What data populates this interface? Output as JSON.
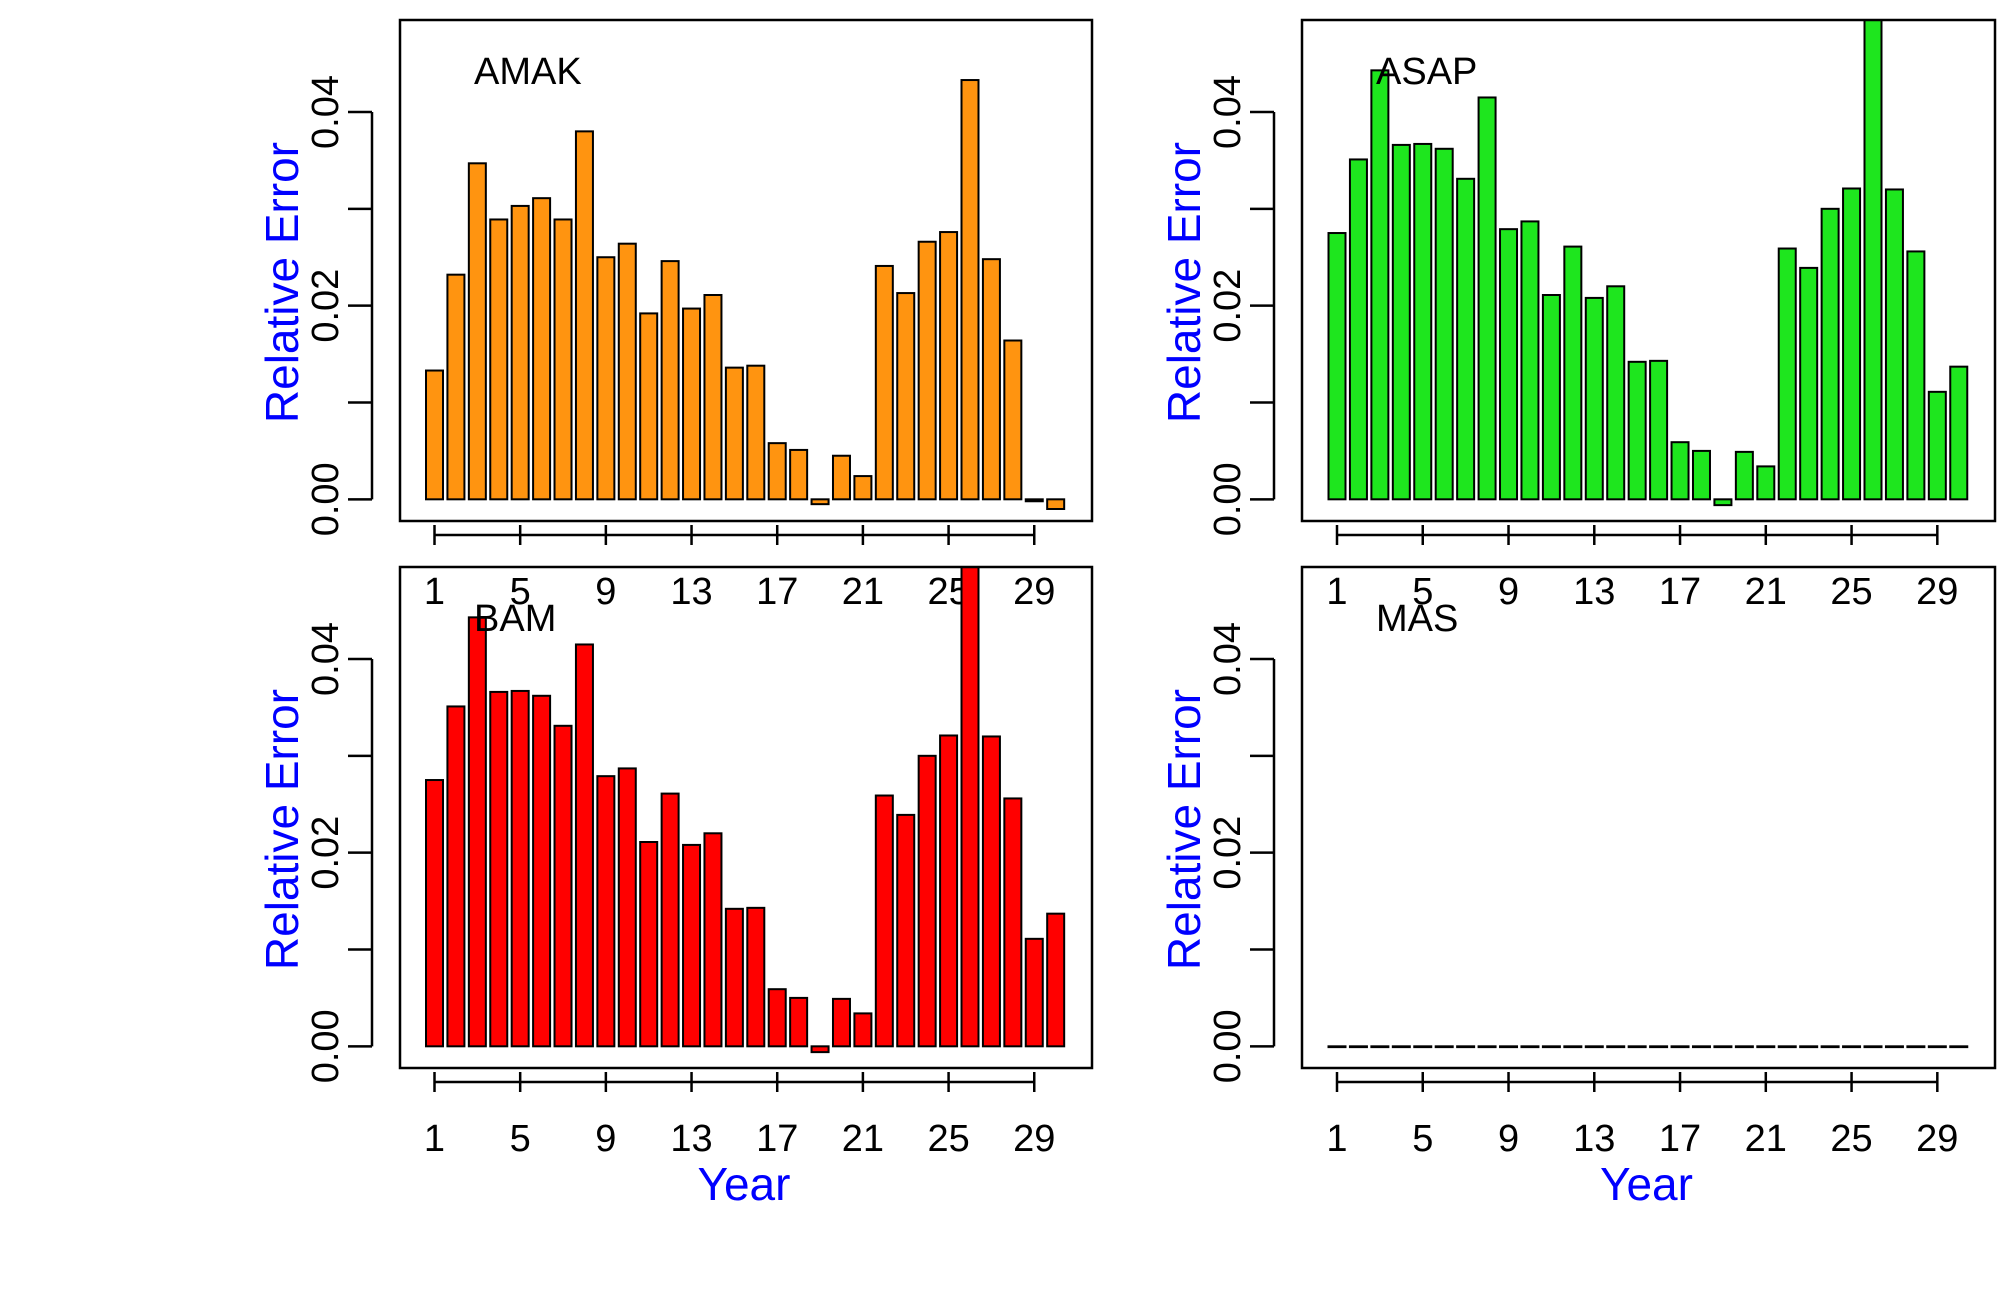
{
  "figure": {
    "axis_label_color": "#0000FF",
    "bar_border_color": "#000000"
  },
  "chart_data": [
    {
      "type": "bar",
      "title": "AMAK",
      "xlabel": "",
      "ylabel": "Relative Error",
      "fill_color": "#FF9410",
      "categories": [
        1,
        2,
        3,
        4,
        5,
        6,
        7,
        8,
        9,
        10,
        11,
        12,
        13,
        14,
        15,
        16,
        17,
        18,
        19,
        20,
        21,
        22,
        23,
        24,
        25,
        26,
        27,
        28,
        29,
        30
      ],
      "x_tick_labels": [
        "1",
        "5",
        "9",
        "13",
        "17",
        "21",
        "25",
        "29"
      ],
      "y_tick_values": [
        0,
        0.01,
        0.02,
        0.03,
        0.04
      ],
      "y_tick_labels": [
        "0.00",
        "",
        "0.02",
        "",
        "0.04"
      ],
      "ylim": [
        -0.001,
        0.0495
      ],
      "values": [
        0.0133,
        0.0232,
        0.0347,
        0.0289,
        0.0303,
        0.0311,
        0.0289,
        0.038,
        0.025,
        0.0264,
        0.0192,
        0.0246,
        0.0197,
        0.0211,
        0.0136,
        0.0138,
        0.0058,
        0.0051,
        -0.0005,
        0.0045,
        0.0024,
        0.0241,
        0.0213,
        0.0266,
        0.0276,
        0.0433,
        0.0248,
        0.0164,
        -0.0002,
        -0.001
      ]
    },
    {
      "type": "bar",
      "title": "ASAP",
      "xlabel": "",
      "ylabel": "Relative Error",
      "fill_color": "#1EE61E",
      "categories": [
        1,
        2,
        3,
        4,
        5,
        6,
        7,
        8,
        9,
        10,
        11,
        12,
        13,
        14,
        15,
        16,
        17,
        18,
        19,
        20,
        21,
        22,
        23,
        24,
        25,
        26,
        27,
        28,
        29,
        30
      ],
      "x_tick_labels": [
        "1",
        "5",
        "9",
        "13",
        "17",
        "21",
        "25",
        "29"
      ],
      "y_tick_values": [
        0,
        0.01,
        0.02,
        0.03,
        0.04
      ],
      "y_tick_labels": [
        "0.00",
        "",
        "0.02",
        "",
        "0.04"
      ],
      "ylim": [
        -0.001,
        0.0495
      ],
      "values": [
        0.0275,
        0.0351,
        0.0443,
        0.0366,
        0.0367,
        0.0362,
        0.0331,
        0.0415,
        0.0279,
        0.0287,
        0.0211,
        0.0261,
        0.0208,
        0.022,
        0.0142,
        0.0143,
        0.0059,
        0.005,
        -0.0006,
        0.0049,
        0.0034,
        0.0259,
        0.0239,
        0.03,
        0.0321,
        0.0495,
        0.032,
        0.0256,
        0.0111,
        0.0137
      ]
    },
    {
      "type": "bar",
      "title": "BAM",
      "xlabel": "Year",
      "ylabel": "Relative Error",
      "fill_color": "#FF0000",
      "categories": [
        1,
        2,
        3,
        4,
        5,
        6,
        7,
        8,
        9,
        10,
        11,
        12,
        13,
        14,
        15,
        16,
        17,
        18,
        19,
        20,
        21,
        22,
        23,
        24,
        25,
        26,
        27,
        28,
        29,
        30
      ],
      "x_tick_labels": [
        "1",
        "5",
        "9",
        "13",
        "17",
        "21",
        "25",
        "29"
      ],
      "y_tick_values": [
        0,
        0.01,
        0.02,
        0.03,
        0.04
      ],
      "y_tick_labels": [
        "0.00",
        "",
        "0.02",
        "",
        "0.04"
      ],
      "ylim": [
        -0.001,
        0.0495
      ],
      "values": [
        0.0275,
        0.0351,
        0.0443,
        0.0366,
        0.0367,
        0.0362,
        0.0331,
        0.0415,
        0.0279,
        0.0287,
        0.0211,
        0.0261,
        0.0208,
        0.022,
        0.0142,
        0.0143,
        0.0059,
        0.005,
        -0.0006,
        0.0049,
        0.0034,
        0.0259,
        0.0239,
        0.03,
        0.0321,
        0.0495,
        0.032,
        0.0256,
        0.0111,
        0.0137
      ]
    },
    {
      "type": "bar",
      "title": "MAS",
      "xlabel": "Year",
      "ylabel": "Relative Error",
      "fill_color": "#FFFFFF",
      "categories": [
        1,
        2,
        3,
        4,
        5,
        6,
        7,
        8,
        9,
        10,
        11,
        12,
        13,
        14,
        15,
        16,
        17,
        18,
        19,
        20,
        21,
        22,
        23,
        24,
        25,
        26,
        27,
        28,
        29,
        30
      ],
      "x_tick_labels": [
        "1",
        "5",
        "9",
        "13",
        "17",
        "21",
        "25",
        "29"
      ],
      "y_tick_values": [
        0,
        0.01,
        0.02,
        0.03,
        0.04
      ],
      "y_tick_labels": [
        "0.00",
        "",
        "0.02",
        "",
        "0.04"
      ],
      "ylim": [
        -0.001,
        0.0495
      ],
      "values": [
        0,
        0,
        0,
        0,
        0,
        0,
        0,
        0,
        0,
        0,
        0,
        0,
        0,
        0,
        0,
        0,
        0,
        0,
        0,
        0,
        0,
        0,
        0,
        0,
        0,
        0,
        0,
        0,
        0,
        0
      ]
    }
  ]
}
